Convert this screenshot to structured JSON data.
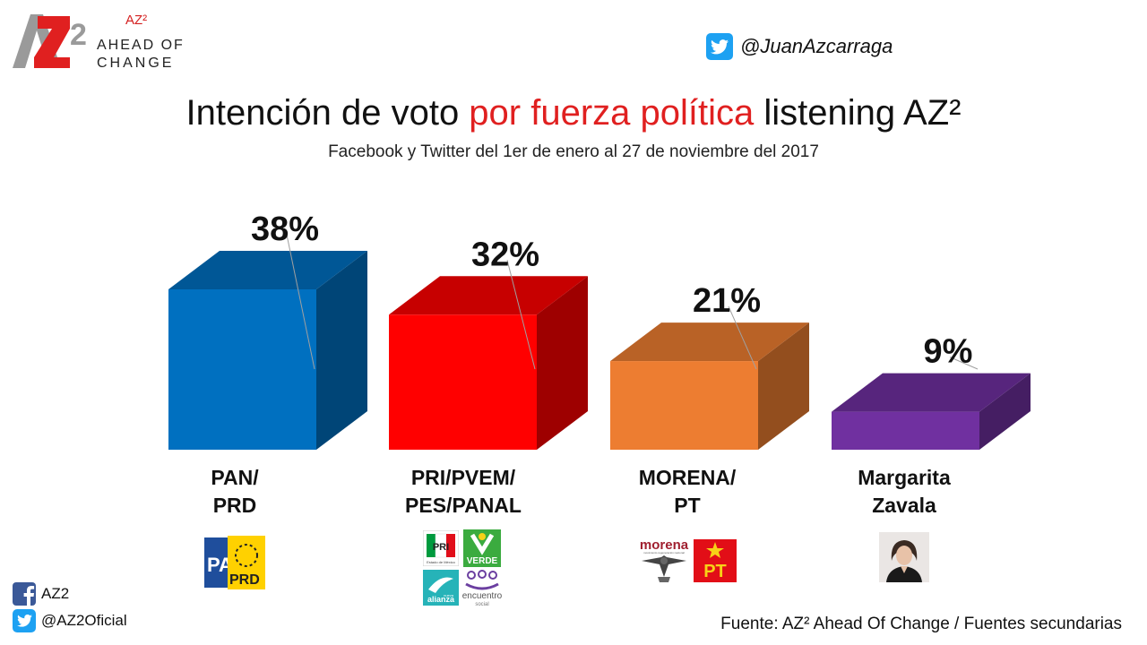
{
  "brand": {
    "az2": "AZ²",
    "tagline_1": "AHEAD OF",
    "tagline_2": "CHANGE"
  },
  "header": {
    "twitter_handle": "@JuanAzcarraga"
  },
  "title": {
    "part1": "Intención de voto ",
    "highlight": "por fuerza política",
    "part2": " listening AZ²"
  },
  "subtitle": "Facebook y Twitter del 1er de enero al 27 de noviembre del 2017",
  "chart_data": {
    "type": "bar",
    "title": "Intención de voto por fuerza política listening AZ²",
    "subtitle": "Facebook y Twitter del 1er de enero al 27 de noviembre del 2017",
    "categories": [
      [
        "PAN/",
        "PRD"
      ],
      [
        "PRI/PVEM/",
        "PES/PANAL"
      ],
      [
        "MORENA/",
        "PT"
      ],
      [
        "Margarita",
        "Zavala"
      ]
    ],
    "values": [
      38,
      32,
      21,
      9
    ],
    "data_labels": [
      "38%",
      "32%",
      "21%",
      "9%"
    ],
    "colors": [
      "#0070c0",
      "#ff0000",
      "#ed7d31",
      "#7030a0"
    ],
    "ylim": [
      0,
      40
    ],
    "grid": false,
    "legend": "none",
    "style": "3d"
  },
  "logos": {
    "pan_prd": {
      "pan": "PAN",
      "prd": "PRD"
    },
    "pri": "PRI",
    "pri_sub": "Estado de México",
    "verde": "VERDE",
    "alianza": "alianza",
    "alianza_top": "nueva",
    "encuentro": "encuentro",
    "encuentro_sub": "social",
    "morena": "morena",
    "morena_sub": "movimiento regeneración nacional",
    "pt": "PT"
  },
  "footer": {
    "facebook": "AZ2",
    "twitter": "@AZ2Oficial",
    "source": "Fuente: AZ² Ahead Of Change / Fuentes secundarias"
  }
}
